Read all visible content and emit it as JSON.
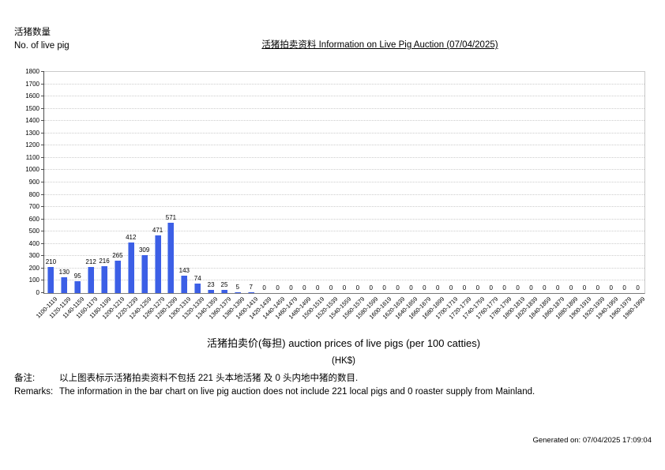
{
  "page": {
    "y_axis_caption_zh": "活猪数量",
    "y_axis_caption_en": "No. of live pig",
    "title": "活猪拍卖资料 Information on Live Pig Auction (07/04/2025)",
    "generated_on": "Generated on: 07/04/2025 17:09:04"
  },
  "remarks": {
    "zh_label": "备注:",
    "zh_text": "以上图表标示活猪拍卖资料不包括 221 头本地活猪 及 0 头内地中猪的数目.",
    "en_label": "Remarks:",
    "en_text": "The information in the bar chart on live pig auction does not include 221 local pigs and 0 roaster supply from Mainland."
  },
  "chart_data": {
    "type": "bar",
    "title": "活猪拍卖资料 Information on Live Pig Auction (07/04/2025)",
    "categories": [
      "1100-1119",
      "1120-1139",
      "1140-1159",
      "1160-1179",
      "1180-1199",
      "1200-1219",
      "1220-1239",
      "1240-1259",
      "1260-1279",
      "1280-1299",
      "1300-1319",
      "1320-1339",
      "1340-1359",
      "1360-1379",
      "1380-1399",
      "1400-1419",
      "1420-1439",
      "1440-1459",
      "1460-1479",
      "1480-1499",
      "1500-1519",
      "1520-1539",
      "1540-1559",
      "1560-1579",
      "1580-1599",
      "1600-1619",
      "1620-1639",
      "1640-1659",
      "1660-1679",
      "1680-1699",
      "1700-1719",
      "1720-1739",
      "1740-1759",
      "1760-1779",
      "1780-1799",
      "1800-1819",
      "1820-1839",
      "1840-1859",
      "1860-1879",
      "1880-1899",
      "1900-1919",
      "1920-1939",
      "1940-1959",
      "1960-1979",
      "1980-1999"
    ],
    "values": [
      210,
      130,
      95,
      212,
      216,
      265,
      412,
      309,
      471,
      571,
      143,
      74,
      23,
      25,
      5,
      7,
      0,
      0,
      0,
      0,
      0,
      0,
      0,
      0,
      0,
      0,
      0,
      0,
      0,
      0,
      0,
      0,
      0,
      0,
      0,
      0,
      0,
      0,
      0,
      0,
      0,
      0,
      0,
      0,
      0
    ],
    "xlabel": "活猪拍卖价(每担) auction prices of live pigs (per 100 catties)",
    "xlabel_unit": "(HK$)",
    "ylabel": "活猪数量 No. of live pig",
    "ylim": [
      0,
      1800
    ],
    "ytick_step": 100,
    "grid": true,
    "legend_position": "none",
    "bar_color": "#3c5fe6",
    "bar_edge_color": "#8fa8f0",
    "data_labels_shown": true
  }
}
